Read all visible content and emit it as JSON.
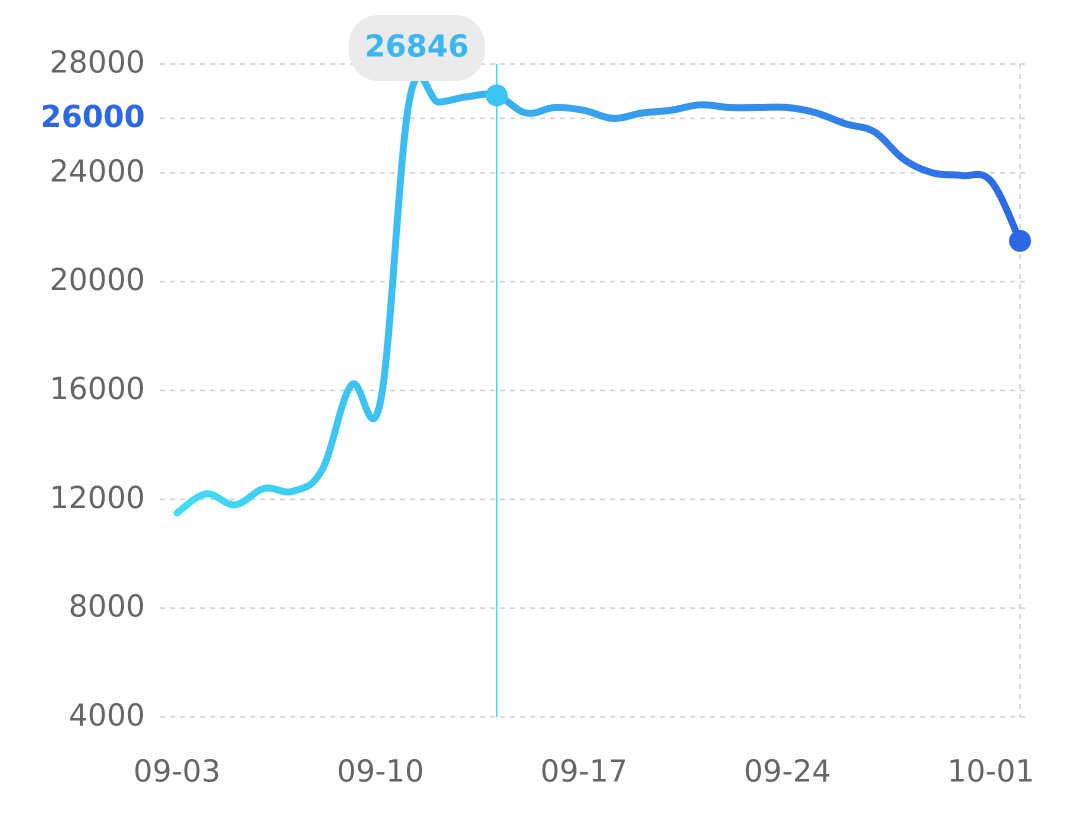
{
  "chart_data": {
    "type": "line",
    "categories": [
      "09-03",
      null,
      null,
      null,
      null,
      null,
      null,
      "09-10",
      null,
      null,
      null,
      null,
      null,
      null,
      "09-17",
      null,
      null,
      null,
      null,
      null,
      null,
      "09-24",
      null,
      null,
      null,
      null,
      null,
      null,
      "10-01",
      null
    ],
    "series": [
      {
        "colors": [
          "#42dcf6",
          "#2c68e6"
        ],
        "values": [
          11500,
          12200,
          11800,
          12400,
          12300,
          13100,
          16200,
          15600,
          26700,
          26600,
          26800,
          26846,
          26200,
          26400,
          26300,
          26000,
          26200,
          26300,
          26500,
          26400,
          26400,
          26400,
          26200,
          25800,
          25500,
          24500,
          24000,
          23900,
          23700,
          21500
        ]
      }
    ],
    "ylim": [
      4000,
      28000
    ],
    "yticks": [
      4000,
      8000,
      12000,
      16000,
      20000,
      24000,
      26000,
      28000
    ],
    "grid": true,
    "selected_index": 11,
    "highlighted_ytick_index": 6
  }
}
